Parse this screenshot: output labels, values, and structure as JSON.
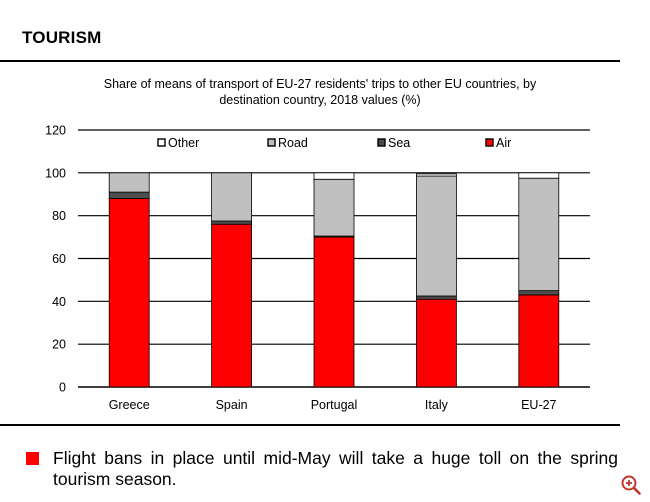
{
  "section": {
    "title": "TOURISM"
  },
  "note": {
    "text": "Flight bans in place until mid-May will take a huge toll on the spring tourism season."
  },
  "colors": {
    "air": "#ff0000",
    "sea": "#4d4d4d",
    "road": "#c0c0c0",
    "other": "#ffffff",
    "outline": "#000000",
    "bullet": "#ff0000"
  },
  "chart_data": {
    "type": "bar",
    "stacked": true,
    "title": "Share of means of transport of EU-27 residents' trips to other EU countries, by destination country, 2018 values (%)",
    "title_lines": [
      "Share of means of transport of EU-27 residents' trips to other EU countries, by",
      "destination country, 2018 values (%)"
    ],
    "xlabel": "",
    "ylabel": "",
    "ylim": [
      0,
      120
    ],
    "yticks": [
      0,
      20,
      40,
      60,
      80,
      100,
      120
    ],
    "categories": [
      "Greece",
      "Spain",
      "Portugal",
      "Italy",
      "EU-27"
    ],
    "legend_position": "top",
    "series": [
      {
        "name": "Air",
        "key": "air",
        "values": [
          88,
          76,
          70,
          41,
          43
        ]
      },
      {
        "name": "Sea",
        "key": "sea",
        "values": [
          3,
          1.5,
          0.5,
          1.5,
          2
        ]
      },
      {
        "name": "Road",
        "key": "road",
        "values": [
          9,
          22.5,
          26.5,
          56,
          52.5
        ]
      },
      {
        "name": "Other",
        "key": "other",
        "values": [
          0,
          0,
          3,
          1,
          2.5
        ]
      }
    ],
    "legend_order": [
      "Other",
      "Road",
      "Sea",
      "Air"
    ]
  }
}
